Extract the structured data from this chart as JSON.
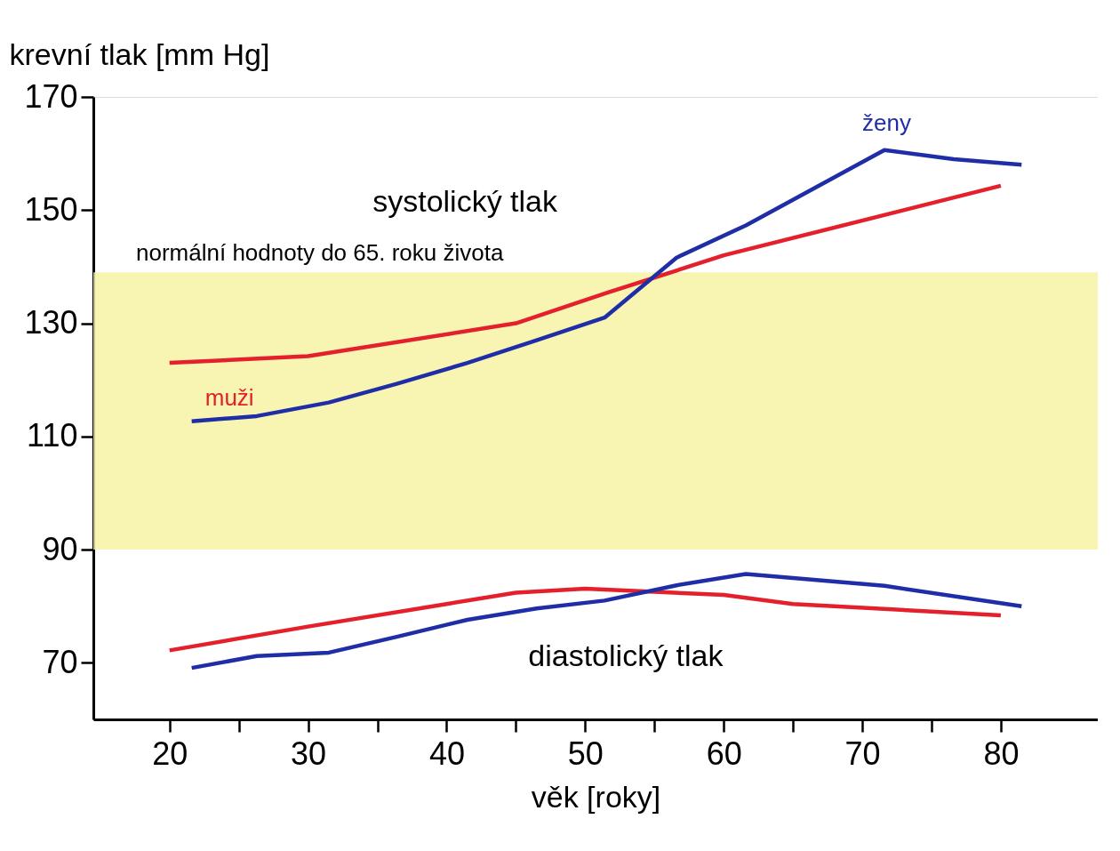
{
  "chart_data": {
    "type": "line",
    "xlabel": "věk [roky]",
    "ylabel": "krevní tlak [mm Hg]",
    "xlim": [
      14.5,
      87
    ],
    "ylim": [
      60,
      170
    ],
    "xticks": [
      20,
      {
        "value": 25,
        "label": null
      },
      30,
      {
        "value": 35,
        "label": null
      },
      40,
      {
        "value": 45,
        "label": null
      },
      50,
      {
        "value": 55,
        "label": null
      },
      60,
      {
        "value": 65,
        "label": null
      },
      70,
      {
        "value": 75,
        "label": null
      },
      80
    ],
    "yticks": [
      70,
      90,
      110,
      130,
      150,
      170
    ],
    "grid": false,
    "legend": false,
    "marker": "none",
    "line_style": "solid",
    "series": [
      {
        "name": "muži",
        "color": "#e3202b",
        "x": [
          20,
          30,
          45,
          51.6,
          60,
          80
        ],
        "values": [
          123,
          124.2,
          130,
          135.4,
          142,
          154.3
        ]
      },
      {
        "name": "ženy",
        "color": "#1f2ea6",
        "x": [
          21.6,
          26.3,
          31.5,
          36.4,
          41.5,
          46.5,
          51.4,
          56.6,
          61.6,
          71.6,
          76.6,
          81.5
        ],
        "values": [
          112.7,
          113.6,
          116,
          119.3,
          123,
          127,
          131,
          141.6,
          147.3,
          160.6,
          159,
          158
        ]
      },
      {
        "color": "#e3202b",
        "x": [
          20,
          30,
          40,
          45,
          50,
          60,
          65,
          80
        ],
        "values": [
          72.2,
          76.4,
          80.4,
          82.4,
          83.1,
          82,
          80.4,
          78.4
        ]
      },
      {
        "color": "#1f2ea6",
        "x": [
          21.6,
          26.3,
          31.5,
          36.4,
          41.5,
          46.5,
          51.4,
          56.6,
          61.6,
          71.6,
          81.5
        ],
        "values": [
          69.1,
          71.2,
          71.8,
          74.6,
          77.6,
          79.6,
          81,
          83.7,
          85.7,
          83.6,
          80
        ]
      }
    ],
    "bands": [
      {
        "axis": "y",
        "from": 90,
        "to": 139,
        "label": "normální hodnoty do 65. roku života",
        "color": "#f6f3a0"
      }
    ],
    "annotations": [
      "systolický tlak",
      "diastolický tlak"
    ]
  }
}
